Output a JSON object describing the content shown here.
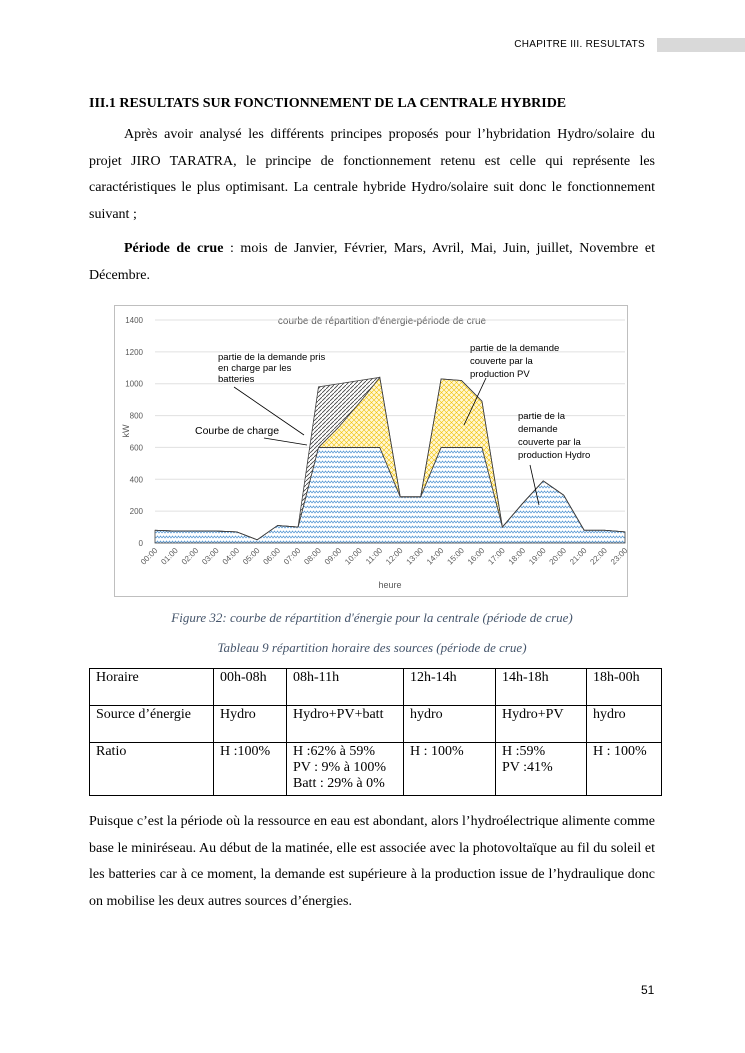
{
  "header": {
    "chapter": "CHAPITRE III. RESULTATS"
  },
  "section_title": "III.1 RESULTATS SUR FONCTIONNEMENT DE LA CENTRALE HYBRIDE",
  "paragraphs": [
    "Après avoir analysé les différents principes proposés pour l’hybridation Hydro/solaire du projet JIRO TARATRA, le principe de fonctionnement retenu est celle qui représente les caractéristiques le plus optimisant. La centrale hybride Hydro/solaire suit donc le fonctionnement suivant ;"
  ],
  "period": {
    "label": "Période de crue",
    "text": " : mois de Janvier, Février, Mars, Avril, Mai, Juin, juillet, Novembre et Décembre."
  },
  "chart_data": {
    "type": "stacked_area",
    "title": "courbe de répartition d'énergie-période de crue",
    "x_label": "heure",
    "y_label": "kW",
    "categories": [
      "00:00",
      "01:00",
      "02:00",
      "03:00",
      "04:00",
      "05:00",
      "06:00",
      "07:00",
      "08:00",
      "09:00",
      "10:00",
      "11:00",
      "12:00",
      "13:00",
      "14:00",
      "15:00",
      "16:00",
      "17:00",
      "18:00",
      "19:00",
      "20:00",
      "21:00",
      "22:00",
      "23:00"
    ],
    "series": [
      {
        "color": "#5b9bd5",
        "values": [
          80,
          75,
          75,
          75,
          70,
          20,
          110,
          100,
          600,
          600,
          600,
          600,
          290,
          290,
          600,
          600,
          600,
          100,
          250,
          390,
          300,
          80,
          80,
          70
        ]
      },
      {
        "color": "#f2c200",
        "values": [
          0,
          0,
          0,
          0,
          0,
          0,
          0,
          0,
          0,
          130,
          280,
          440,
          0,
          0,
          430,
          420,
          290,
          0,
          0,
          0,
          0,
          0,
          0,
          0
        ]
      },
      {
        "color": "#404040",
        "values": [
          0,
          0,
          0,
          0,
          0,
          0,
          0,
          0,
          380,
          270,
          140,
          0,
          0,
          0,
          0,
          0,
          0,
          0,
          0,
          0,
          0,
          0,
          0,
          0
        ]
      }
    ],
    "ylim": [
      0,
      1400
    ],
    "yticks": [
      0,
      200,
      400,
      600,
      800,
      1000,
      1200,
      1400
    ],
    "grid": true,
    "annotations": [
      [
        "partie de la demande pris",
        "en charge par les",
        "batteries"
      ],
      [
        "Courbe de charge"
      ],
      [
        "partie de la demande",
        "couverte par la",
        "production PV"
      ],
      [
        "partie de la",
        "demande",
        "couverte par la",
        "production Hydro"
      ]
    ]
  },
  "figure_caption": "Figure 32: courbe de répartition d'énergie pour la centrale (période de crue)",
  "table_caption": "Tableau 9 répartition horaire des sources (période de crue)",
  "table": {
    "rows": [
      [
        "Horaire",
        "00h-08h",
        "08h-11h",
        "12h-14h",
        "14h-18h",
        "18h-00h"
      ],
      [
        "Source d’énergie",
        "Hydro",
        "Hydro+PV+batt",
        "hydro",
        "Hydro+PV",
        "hydro"
      ],
      [
        "Ratio",
        "H :100%",
        "H :62% à 59%\nPV : 9% à 100%\nBatt : 29% à 0%",
        "H : 100%",
        "H :59%\nPV :41%",
        "H : 100%"
      ]
    ]
  },
  "closing_paragraph": "Puisque c’est la période où la ressource en eau est abondant, alors l’hydroélectrique alimente comme base le miniréseau. Au début de la matinée, elle est associée avec la photovoltaïque au fil du soleil et les batteries car à ce moment, la demande est supérieure à la production issue de l’hydraulique donc on mobilise les deux autres sources d’énergies.",
  "page_number": "51"
}
